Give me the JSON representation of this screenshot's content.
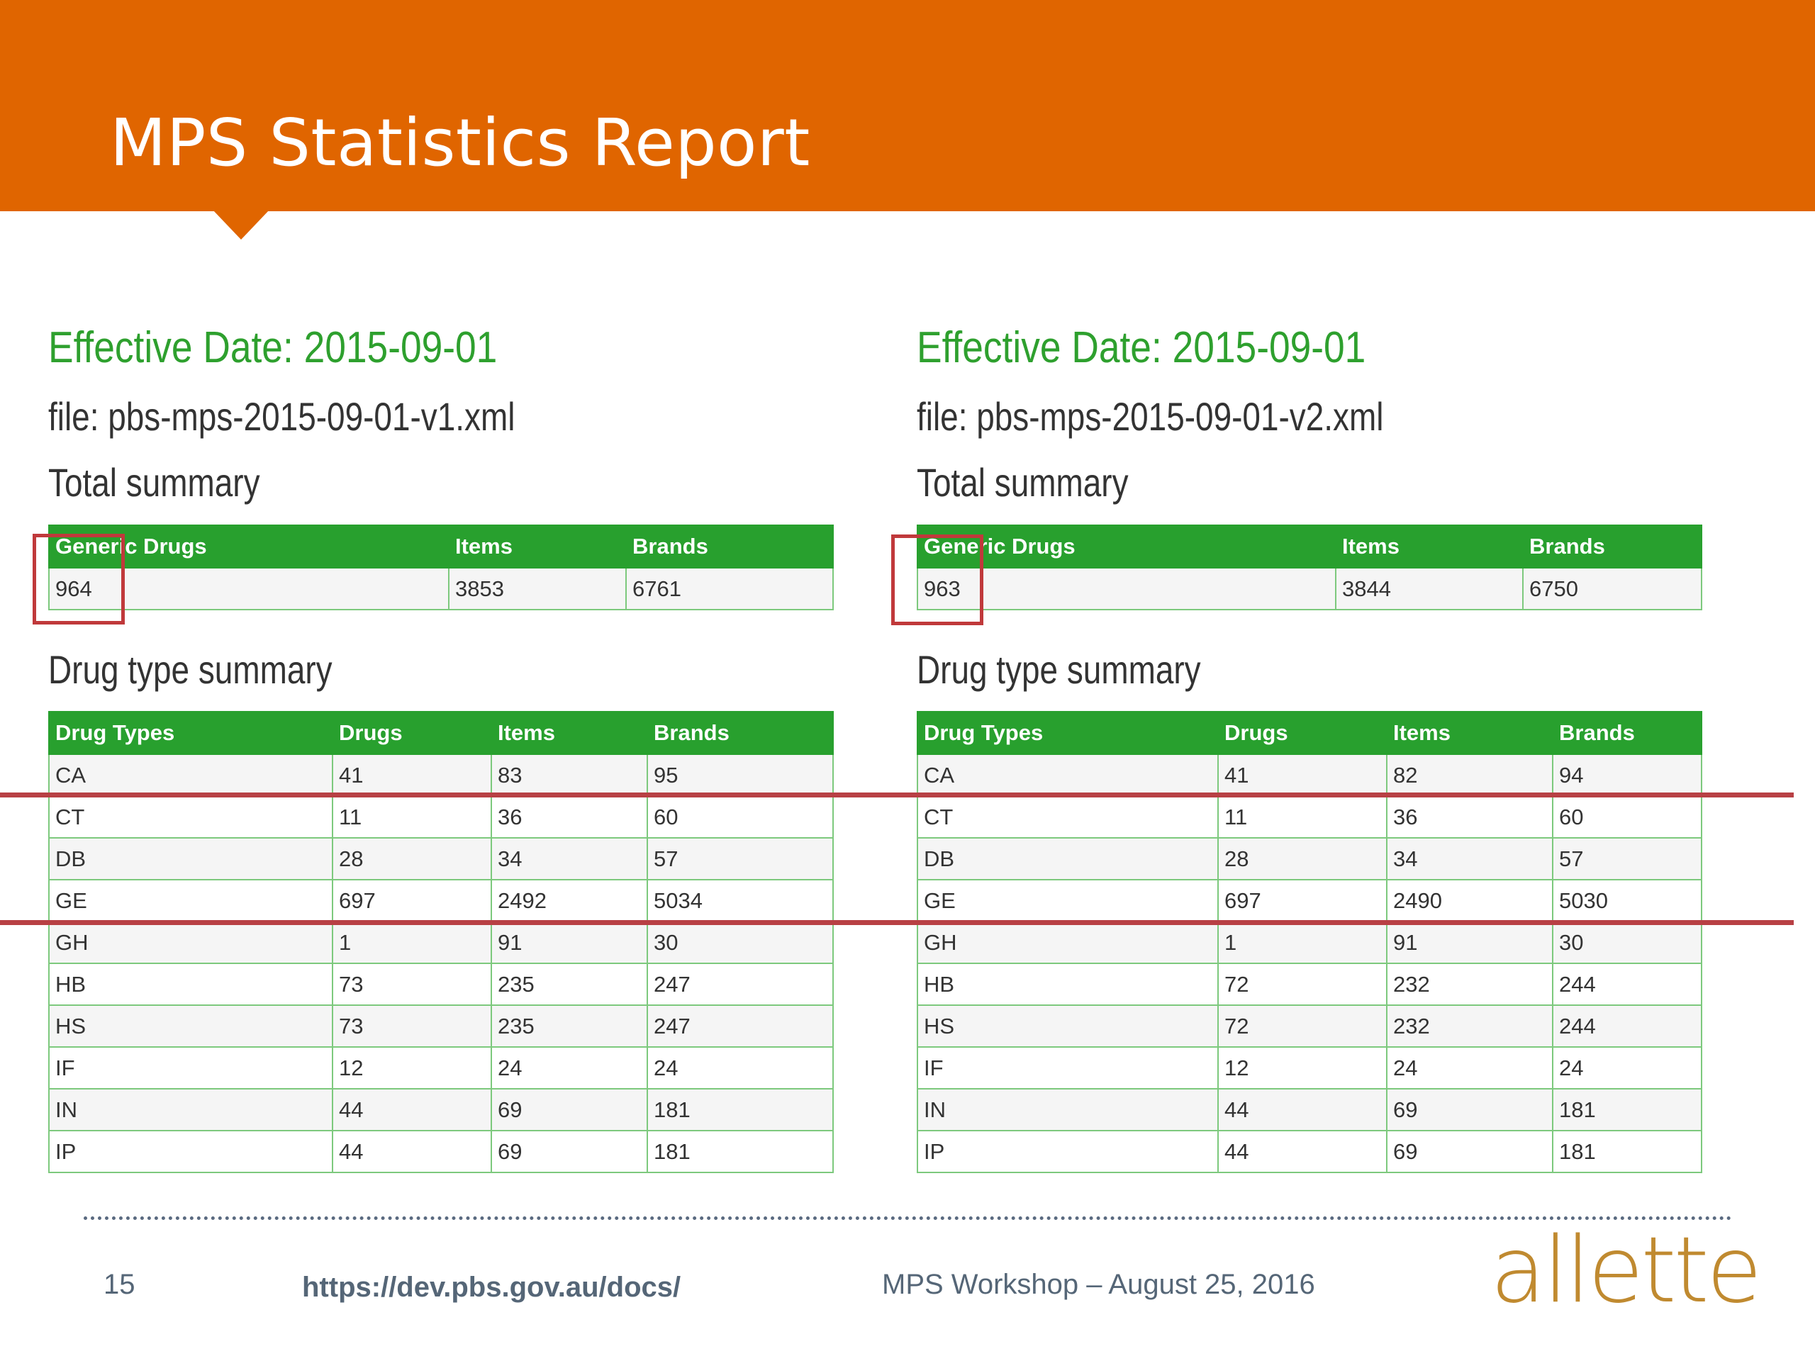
{
  "header": {
    "title": "MPS Statistics Report"
  },
  "colors": {
    "header": "#E06500",
    "accent_green": "#28A02E",
    "highlight_red": "#C0393B",
    "logo": "#C08A30"
  },
  "left": {
    "effective_date": "Effective Date: 2015-09-01",
    "file": "file: pbs-mps-2015-09-01-v1.xml",
    "total_title": "Total summary",
    "total_headers": [
      "Generic Drugs",
      "Items",
      "Brands"
    ],
    "total_values": [
      "964",
      "3853",
      "6761"
    ],
    "drugtype_title": "Drug type summary",
    "drugtype_headers": [
      "Drug Types",
      "Drugs",
      "Items",
      "Brands"
    ],
    "rows": [
      [
        "CA",
        "41",
        "83",
        "95"
      ],
      [
        "CT",
        "11",
        "36",
        "60"
      ],
      [
        "DB",
        "28",
        "34",
        "57"
      ],
      [
        "GE",
        "697",
        "2492",
        "5034"
      ],
      [
        "GH",
        "1",
        "91",
        "30"
      ],
      [
        "HB",
        "73",
        "235",
        "247"
      ],
      [
        "HS",
        "73",
        "235",
        "247"
      ],
      [
        "IF",
        "12",
        "24",
        "24"
      ],
      [
        "IN",
        "44",
        "69",
        "181"
      ],
      [
        "IP",
        "44",
        "69",
        "181"
      ]
    ]
  },
  "right": {
    "effective_date": "Effective Date: 2015-09-01",
    "file": "file: pbs-mps-2015-09-01-v2.xml",
    "total_title": "Total summary",
    "total_headers": [
      "Generic Drugs",
      "Items",
      "Brands"
    ],
    "total_values": [
      "963",
      "3844",
      "6750"
    ],
    "drugtype_title": "Drug type summary",
    "drugtype_headers": [
      "Drug Types",
      "Drugs",
      "Items",
      "Brands"
    ],
    "rows": [
      [
        "CA",
        "41",
        "82",
        "94"
      ],
      [
        "CT",
        "11",
        "36",
        "60"
      ],
      [
        "DB",
        "28",
        "34",
        "57"
      ],
      [
        "GE",
        "697",
        "2490",
        "5030"
      ],
      [
        "GH",
        "1",
        "91",
        "30"
      ],
      [
        "HB",
        "72",
        "232",
        "244"
      ],
      [
        "HS",
        "72",
        "232",
        "244"
      ],
      [
        "IF",
        "12",
        "24",
        "24"
      ],
      [
        "IN",
        "44",
        "69",
        "181"
      ],
      [
        "IP",
        "44",
        "69",
        "181"
      ]
    ]
  },
  "footer": {
    "page_number": "15",
    "link": "https://dev.pbs.gov.au/docs/",
    "event": "MPS Workshop – August 25, 2016",
    "logo": "allette"
  }
}
